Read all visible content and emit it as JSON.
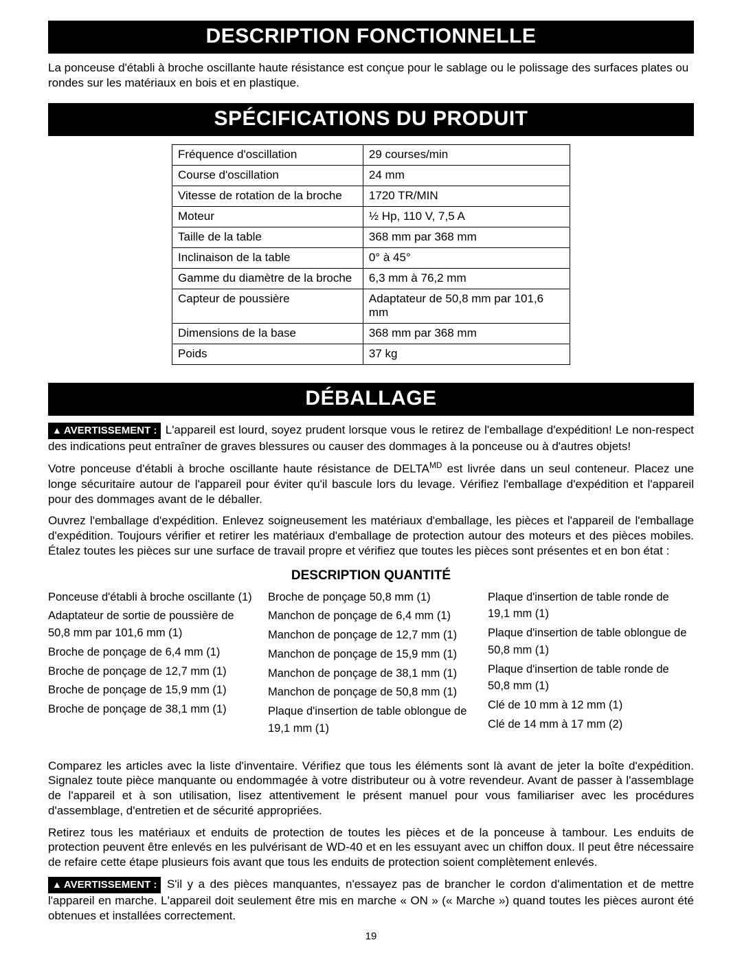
{
  "page_number": "19",
  "sections": {
    "functional": {
      "title": "DESCRIPTION FONCTIONNELLE",
      "text": "La ponceuse d'établi à broche oscillante haute résistance est conçue pour le sablage ou le polissage des surfaces plates ou rondes sur les matériaux en bois et en plastique."
    },
    "specs": {
      "title": "SPÉCIFICATIONS DU PRODUIT",
      "rows": [
        {
          "k": "Fréquence d'oscillation",
          "v": "29 courses/min"
        },
        {
          "k": "Course d'oscillation",
          "v": "24 mm"
        },
        {
          "k": "Vitesse de rotation de la broche",
          "v": "1720 TR/MIN"
        },
        {
          "k": "Moteur",
          "v": "½ Hp, 110 V, 7,5 A"
        },
        {
          "k": "Taille de la table",
          "v": "368 mm par 368 mm"
        },
        {
          "k": "Inclinaison de la table",
          "v": "0° à 45°"
        },
        {
          "k": "Gamme du diamètre de la broche",
          "v": "6,3 mm à 76,2 mm"
        },
        {
          "k": "Capteur de poussière",
          "v": "Adaptateur de 50,8 mm par 101,6 mm"
        },
        {
          "k": "Dimensions de la base",
          "v": "368 mm par 368 mm"
        },
        {
          "k": "Poids",
          "v": "37 kg"
        }
      ]
    },
    "unpacking": {
      "title": "DÉBALLAGE",
      "warn_label": "AVERTISSEMENT :",
      "warn1_text": "L'appareil est lourd, soyez prudent lorsque vous le retirez de l'emballage d'expédition! Le non-respect des indications peut entraîner de graves blessures ou causer des dommages à la ponceuse ou à d'autres objets!",
      "p2_pre": "Votre ponceuse d'établi à broche oscillante haute résistance de DELTA",
      "p2_sup": "MD",
      "p2_post": " est livrée dans un seul conteneur. Placez une longe sécuritaire autour de l'appareil pour éviter qu'il bascule lors du levage. Vérifiez l'emballage d'expédition et l'appareil pour des dommages avant de le déballer.",
      "p3": "Ouvrez l'emballage d'expédition. Enlevez soigneusement les matériaux d'emballage, les pièces et l'appareil de l'emballage d'expédition. Toujours vérifier et retirer les matériaux d'emballage de protection autour des moteurs et des pièces mobiles. Étalez toutes les pièces sur une surface de travail propre et vérifiez que toutes les pièces sont présentes et en bon état :",
      "qty_header": "DESCRIPTION QUANTITÉ",
      "col1": [
        "Ponceuse d'établi à broche oscillante (1)",
        "Adaptateur de sortie de poussière de 50,8 mm par 101,6 mm (1)",
        "Broche de ponçage de 6,4 mm (1)",
        "Broche de ponçage de 12,7 mm (1)",
        "Broche de ponçage de 15,9 mm (1)",
        "Broche de ponçage de 38,1 mm (1)"
      ],
      "col2": [
        "Broche de ponçage 50,8 mm (1)",
        "Manchon de ponçage de 6,4 mm (1)",
        "Manchon de ponçage de 12,7 mm (1)",
        "Manchon de ponçage de 15,9 mm (1)",
        "Manchon de ponçage de 38,1 mm (1)",
        "Manchon de ponçage de 50,8 mm (1)",
        "Plaque d'insertion de table oblongue de 19,1 mm (1)"
      ],
      "col3": [
        "Plaque d'insertion de table ronde de 19,1 mm (1)",
        "Plaque d'insertion de table oblongue de 50,8 mm (1)",
        "Plaque d'insertion de table ronde de 50,8 mm (1)",
        "Clé de 10 mm à 12 mm (1)",
        "Clé de 14 mm à 17 mm (2)"
      ],
      "p4": "Comparez les articles avec la liste d'inventaire. Vérifiez que tous les éléments sont là avant de jeter la boîte d'expédition. Signalez toute pièce manquante ou endommagée à votre distributeur ou à votre revendeur. Avant de passer à l'assemblage de l'appareil et à son utilisation, lisez attentivement le présent manuel pour vous familiariser avec les procédures d'assemblage, d'entretien et de sécurité appropriées.",
      "p5": "Retirez tous les matériaux et enduits de protection de toutes les pièces et de la ponceuse à tambour. Les enduits de protection peuvent être enlevés en les pulvérisant de WD-40 et en les essuyant avec un chiffon doux. Il peut être nécessaire de refaire cette étape plusieurs fois avant que tous les enduits de protection soient complètement enlevés.",
      "warn2_text": "S'il y a des pièces manquantes, n'essayez pas de brancher le cordon d'alimentation et de mettre l'appareil en marche. L'appareil doit seulement être mis en marche « ON » (« Marche ») quand toutes les pièces auront été obtenues et installées correctement."
    }
  }
}
